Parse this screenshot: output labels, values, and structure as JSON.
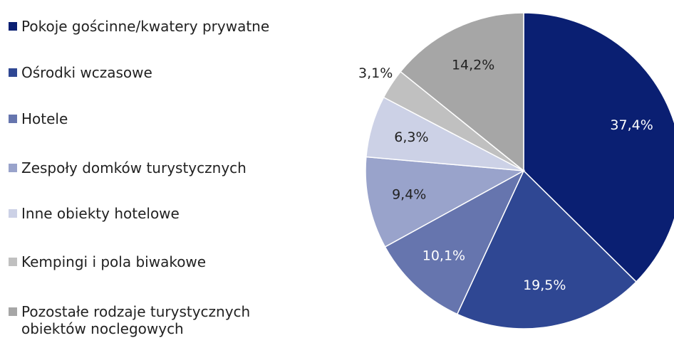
{
  "chart_data": {
    "type": "pie",
    "categories": [
      "Pokoje gościnne/kwatery prywatne",
      "Ośrodki wczasowe",
      "Hotele",
      "Zespoły domków turystycznych",
      "Inne obiekty hotelowe",
      "Kempingi i pola biwakowe",
      "Pozostałe rodzaje turystycznych obiektów noclegowych"
    ],
    "values": [
      37.4,
      19.5,
      10.1,
      9.4,
      6.3,
      3.1,
      14.2
    ],
    "value_labels": [
      "37,4%",
      "19,5%",
      "10,1%",
      "9,4%",
      "6,3%",
      "3,1%",
      "14,2%"
    ],
    "colors": [
      "#0a1f72",
      "#2f4793",
      "#6675ae",
      "#99a3cb",
      "#ccd1e6",
      "#c0c0c0",
      "#a6a6a6"
    ]
  }
}
